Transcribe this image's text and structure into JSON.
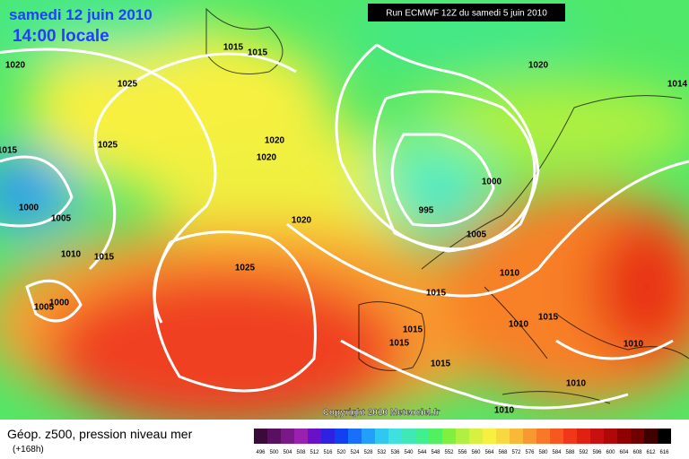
{
  "header": {
    "date": "samedi 12 juin 2010",
    "time": "14:00 locale",
    "run": "Run ECMWF 12Z du samedi 5 juin 2010"
  },
  "isobar_labels": [
    "1015",
    "1015",
    "1020",
    "1025",
    "1020",
    "1014",
    "1015",
    "1025",
    "1020",
    "1020",
    "1000",
    "995",
    "1000",
    "1005",
    "1020",
    "1005",
    "1010",
    "1015",
    "1025",
    "1010",
    "1015",
    "1005",
    "1000",
    "1010",
    "1015",
    "1015",
    "1015",
    "1015",
    "1010",
    "1010",
    "1010"
  ],
  "copyright": "Copyright 2010 Meteociel.fr",
  "legend": {
    "title": "Géop. z500, pression niveau mer",
    "lead": "(+168h)",
    "values": [
      496,
      500,
      504,
      508,
      512,
      516,
      520,
      524,
      528,
      532,
      536,
      540,
      544,
      548,
      552,
      556,
      560,
      564,
      568,
      572,
      576,
      580,
      584,
      588,
      592,
      596,
      600,
      604,
      608,
      612,
      616
    ],
    "colors": [
      "#3a0a3a",
      "#5a1060",
      "#7a1888",
      "#9a20b0",
      "#6a10c8",
      "#3020e0",
      "#1040f0",
      "#1870f8",
      "#20a0f8",
      "#30c8f0",
      "#40e0e0",
      "#40e8b8",
      "#40f090",
      "#50f060",
      "#80f040",
      "#b0f040",
      "#d8f040",
      "#f8f040",
      "#f8d840",
      "#f8b838",
      "#f89830",
      "#f87828",
      "#f85820",
      "#f03818",
      "#e02010",
      "#c81010",
      "#b00808",
      "#900000",
      "#700000",
      "#400000",
      "#000000"
    ]
  }
}
